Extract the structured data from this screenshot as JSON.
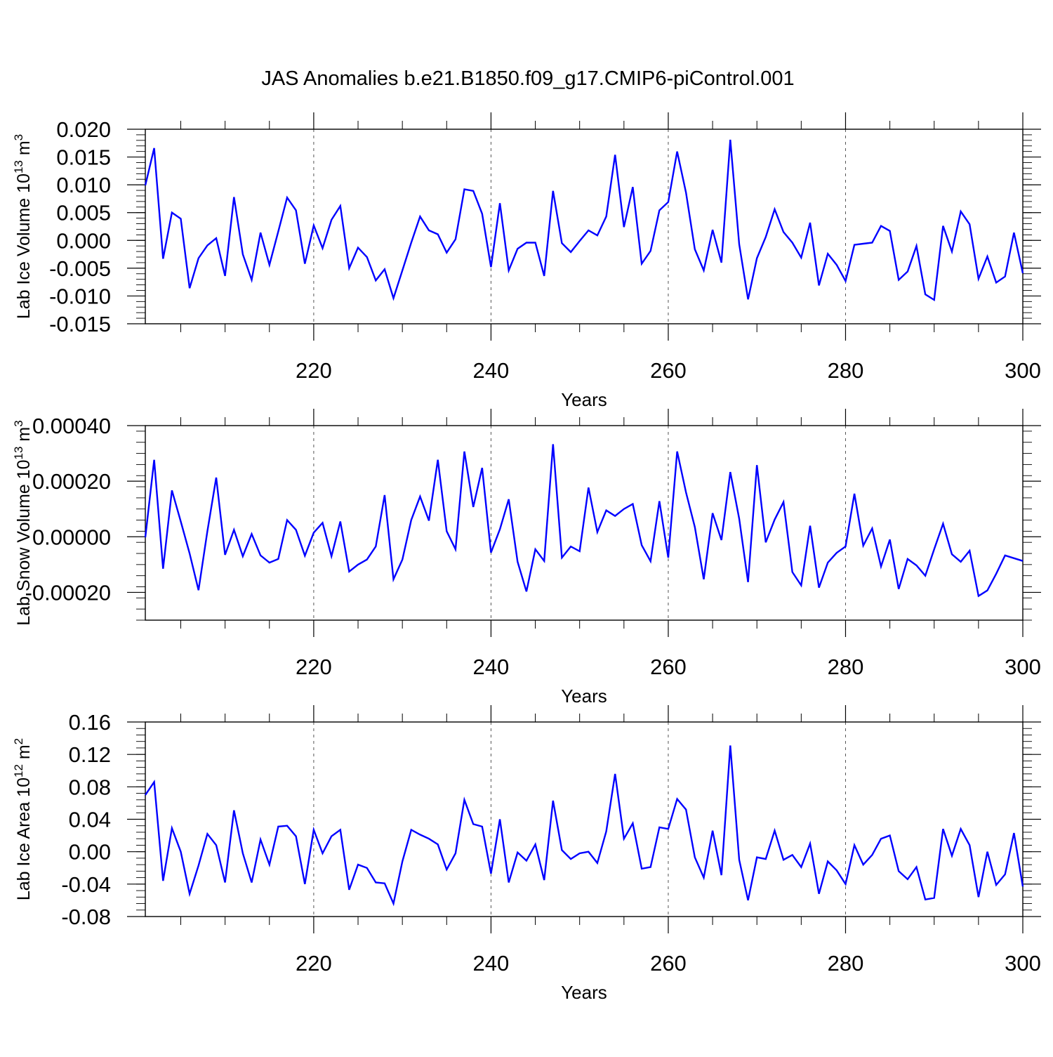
{
  "title": "JAS Anomalies b.e21.B1850.f09_g17.CMIP6-piControl.001",
  "colors": {
    "series": "#0000ff",
    "axis": "#000000",
    "grid": "#555555"
  },
  "chart_data": [
    {
      "type": "line",
      "ylabel_main": "Lab Ice Volume 10",
      "ylabel_exp": "13",
      "ylabel_unit": "m",
      "ylabel_unit_exp": "3",
      "xlabel": "Years",
      "xlim": [
        201,
        300
      ],
      "xticks": [
        220,
        240,
        260,
        280,
        300
      ],
      "ylim": [
        -0.015,
        0.02
      ],
      "yticks": [
        0.02,
        0.015,
        0.01,
        0.005,
        0.0,
        -0.005,
        -0.01,
        -0.015
      ],
      "ytick_labels": [
        "0.020",
        "0.015",
        "0.010",
        "0.005",
        "0.000",
        "-0.005",
        "-0.010",
        "-0.015"
      ],
      "series": [
        {
          "name": "Lab Ice Volume",
          "x_start": 201,
          "values": [
            0.0099,
            0.0166,
            -0.0033,
            0.005,
            0.0039,
            -0.0086,
            -0.0032,
            -0.0009,
            0.0004,
            -0.0064,
            0.0078,
            -0.0025,
            -0.0071,
            0.0014,
            -0.0044,
            0.0016,
            0.0077,
            0.0054,
            -0.0042,
            0.0027,
            -0.0014,
            0.0037,
            0.0062,
            -0.005,
            -0.0013,
            -0.003,
            -0.0072,
            -0.0052,
            -0.0104,
            -0.0054,
            -0.0004,
            0.0043,
            0.0018,
            0.0011,
            -0.0022,
            0.0002,
            0.0092,
            0.0089,
            0.0048,
            -0.0048,
            0.0067,
            -0.0054,
            -0.0015,
            -0.0004,
            -0.0004,
            -0.0064,
            0.0089,
            -0.0005,
            -0.0021,
            -0.0001,
            0.0018,
            0.0009,
            0.0043,
            0.0154,
            0.0024,
            0.0096,
            -0.0042,
            -0.0019,
            0.0054,
            0.0069,
            0.016,
            0.0086,
            -0.0016,
            -0.0054,
            0.0019,
            -0.004,
            0.0181,
            -0.0007,
            -0.0106,
            -0.0032,
            0.0006,
            0.0056,
            0.0015,
            -0.0004,
            -0.0031,
            0.0032,
            -0.0081,
            -0.0024,
            -0.0044,
            -0.0073,
            -0.0008,
            -0.0006,
            -0.0004,
            0.0026,
            0.0017,
            -0.0071,
            -0.0056,
            -0.001,
            -0.0097,
            -0.0107,
            0.0026,
            -0.002,
            0.0052,
            0.0029,
            -0.0069,
            -0.0029,
            -0.0076,
            -0.0065,
            0.0014,
            -0.0059
          ]
        }
      ]
    },
    {
      "type": "line",
      "ylabel_main": "Lab Snow Volume 10",
      "ylabel_exp": "13",
      "ylabel_unit": "m",
      "ylabel_unit_exp": "3",
      "xlabel": "Years",
      "xlim": [
        201,
        300
      ],
      "xticks": [
        220,
        240,
        260,
        280,
        300
      ],
      "ylim": [
        -0.0003,
        0.0004
      ],
      "yticks": [
        0.0004,
        0.0002,
        0.0,
        -0.0002
      ],
      "ytick_labels": [
        "0.00040",
        "0.00020",
        "0.00000",
        "-0.00020"
      ],
      "series": [
        {
          "name": "Lab Snow Volume",
          "x_start": 201,
          "values": [
            -2e-06,
            0.000277,
            -0.000115,
            0.000167,
            5.5e-05,
            -6e-05,
            -0.000192,
            2e-05,
            0.000213,
            -6.5e-05,
            2.5e-05,
            -7e-05,
            1e-05,
            -6.7e-05,
            -9.3e-05,
            -8e-05,
            6e-05,
            2.5e-05,
            -6.8e-05,
            1.5e-05,
            5e-05,
            -7e-05,
            5.5e-05,
            -0.000125,
            -0.0001,
            -8.2e-05,
            -3.5e-05,
            0.00015,
            -0.000153,
            -8.2e-05,
            6e-05,
            0.000145,
            5.8e-05,
            0.000277,
            2e-05,
            -4.5e-05,
            0.000307,
            0.000107,
            0.000248,
            -5.7e-05,
            2.7e-05,
            0.000135,
            -9e-05,
            -0.000197,
            -4.5e-05,
            -8.7e-05,
            0.000333,
            -7.5e-05,
            -3.5e-05,
            -5.2e-05,
            0.000177,
            1.7e-05,
            9.5e-05,
            7.5e-05,
            0.0001,
            0.000118,
            -3e-05,
            -8.8e-05,
            0.000128,
            -7.5e-05,
            0.000307,
            0.00016,
            3.5e-05,
            -0.000153,
            8.5e-05,
            -1.2e-05,
            0.000233,
            6.5e-05,
            -0.000163,
            0.000258,
            -2e-05,
            6.2e-05,
            0.000125,
            -0.000127,
            -0.000175,
            4e-05,
            -0.000183,
            -9.3e-05,
            -5.8e-05,
            -3.5e-05,
            0.000155,
            -3.2e-05,
            3e-05,
            -0.000107,
            -1e-05,
            -0.000188,
            -8e-05,
            -0.000103,
            -0.00014,
            -4.5e-05,
            4.7e-05,
            -6.3e-05,
            -9e-05,
            -5e-05,
            -0.000213,
            -0.000193,
            -0.000133,
            -6.7e-05,
            -7.7e-05,
            -8.7e-05
          ]
        }
      ]
    },
    {
      "type": "line",
      "ylabel_main": "Lab Ice Area 10",
      "ylabel_exp": "12",
      "ylabel_unit": "m",
      "ylabel_unit_exp": "2",
      "xlabel": "Years",
      "xlim": [
        201,
        300
      ],
      "xticks": [
        220,
        240,
        260,
        280,
        300
      ],
      "ylim": [
        -0.08,
        0.16
      ],
      "yticks": [
        0.16,
        0.12,
        0.08,
        0.04,
        0.0,
        -0.04,
        -0.08
      ],
      "ytick_labels": [
        "0.16",
        "0.12",
        "0.08",
        "0.04",
        "0.00",
        "-0.04",
        "-0.08"
      ],
      "series": [
        {
          "name": "Lab Ice Area",
          "x_start": 201,
          "values": [
            0.07,
            0.086,
            -0.036,
            0.029,
            0.0,
            -0.052,
            -0.017,
            0.022,
            0.008,
            -0.038,
            0.051,
            -0.002,
            -0.038,
            0.015,
            -0.016,
            0.031,
            0.032,
            0.019,
            -0.04,
            0.027,
            -0.002,
            0.019,
            0.027,
            -0.047,
            -0.016,
            -0.02,
            -0.038,
            -0.039,
            -0.064,
            -0.012,
            0.027,
            0.021,
            0.016,
            0.009,
            -0.022,
            -0.002,
            0.064,
            0.034,
            0.031,
            -0.027,
            0.04,
            -0.038,
            -0.001,
            -0.011,
            0.009,
            -0.035,
            0.063,
            0.002,
            -0.009,
            -0.002,
            0.0,
            -0.014,
            0.025,
            0.096,
            0.016,
            0.035,
            -0.021,
            -0.019,
            0.03,
            0.028,
            0.065,
            0.052,
            -0.007,
            -0.032,
            0.026,
            -0.029,
            0.131,
            -0.01,
            -0.06,
            -0.007,
            -0.009,
            0.026,
            -0.01,
            -0.004,
            -0.019,
            0.01,
            -0.052,
            -0.012,
            -0.023,
            -0.04,
            0.008,
            -0.016,
            -0.004,
            0.016,
            0.02,
            -0.024,
            -0.034,
            -0.019,
            -0.059,
            -0.057,
            0.028,
            -0.005,
            0.028,
            0.008,
            -0.056,
            0.0,
            -0.041,
            -0.028,
            0.023,
            -0.043
          ]
        }
      ]
    }
  ]
}
